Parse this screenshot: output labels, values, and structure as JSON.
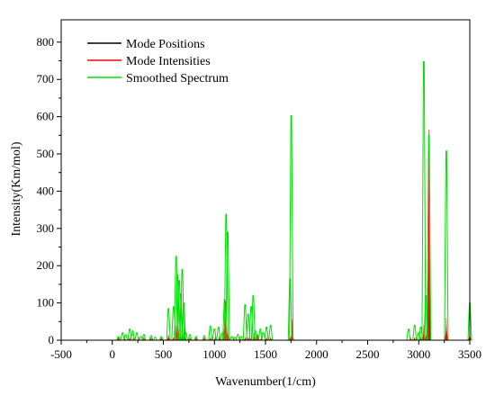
{
  "chart_data": {
    "type": "line",
    "xlabel": "Wavenumber(1/cm)",
    "ylabel": "Intensity(Km/mol)",
    "xlim": [
      -500,
      3500
    ],
    "ylim": [
      0,
      860
    ],
    "xticks": [
      -500,
      0,
      500,
      1000,
      1500,
      2000,
      2500,
      3000,
      3500
    ],
    "yticks": [
      0,
      100,
      200,
      300,
      400,
      500,
      600,
      700,
      800
    ],
    "grid": false,
    "legend_position": "top-left",
    "series": [
      {
        "name": "Mode Positions",
        "color": "#000000",
        "style": "baseline",
        "x": [
          -500,
          3500
        ],
        "y": [
          0,
          0
        ]
      },
      {
        "name": "Mode Intensities",
        "color": "#ff0000",
        "style": "sticks",
        "x": [
          60,
          120,
          170,
          210,
          260,
          310,
          380,
          480,
          550,
          600,
          630,
          650,
          670,
          690,
          710,
          760,
          820,
          900,
          960,
          1010,
          1050,
          1090,
          1110,
          1130,
          1190,
          1250,
          1300,
          1330,
          1360,
          1390,
          1420,
          1460,
          1510,
          1550,
          1740,
          1760,
          2920,
          2960,
          3020,
          3050,
          3080,
          3100,
          3270,
          3500
        ],
        "y": [
          2,
          3,
          4,
          3,
          2,
          3,
          4,
          3,
          15,
          8,
          40,
          30,
          22,
          18,
          35,
          6,
          4,
          3,
          8,
          10,
          12,
          30,
          105,
          40,
          5,
          4,
          4,
          6,
          8,
          20,
          15,
          8,
          5,
          6,
          8,
          55,
          4,
          5,
          6,
          40,
          30,
          565,
          60,
          20
        ]
      },
      {
        "name": "Smoothed Spectrum",
        "color": "#00e000",
        "style": "peaks",
        "x": [
          60,
          100,
          130,
          170,
          200,
          240,
          280,
          310,
          380,
          420,
          480,
          550,
          600,
          625,
          640,
          655,
          670,
          685,
          700,
          720,
          760,
          820,
          900,
          960,
          1000,
          1040,
          1080,
          1100,
          1115,
          1130,
          1170,
          1200,
          1230,
          1260,
          1300,
          1330,
          1360,
          1380,
          1400,
          1420,
          1450,
          1480,
          1510,
          1550,
          1740,
          1752,
          2900,
          2960,
          3000,
          3020,
          3050,
          3070,
          3100,
          3270,
          3500
        ],
        "y": [
          10,
          20,
          15,
          30,
          25,
          20,
          10,
          15,
          12,
          8,
          10,
          85,
          90,
          225,
          175,
          160,
          125,
          190,
          100,
          20,
          15,
          10,
          12,
          38,
          30,
          35,
          20,
          110,
          338,
          290,
          10,
          8,
          15,
          10,
          95,
          70,
          90,
          120,
          25,
          15,
          30,
          20,
          35,
          40,
          165,
          603,
          30,
          40,
          20,
          35,
          748,
          120,
          550,
          508,
          100
        ]
      }
    ]
  }
}
